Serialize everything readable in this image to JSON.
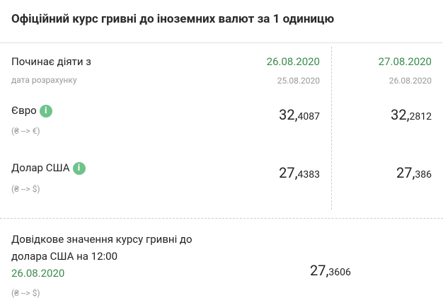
{
  "header": {
    "title": "Офіційний курс гривні до іноземних валют за 1 одиницю"
  },
  "table": {
    "effective_label": "Починає діяти з",
    "calc_label": "дата розрахунку",
    "columns": [
      {
        "effective_date": "26.08.2020",
        "calc_date": "25.08.2020"
      },
      {
        "effective_date": "27.08.2020",
        "calc_date": "26.08.2020"
      }
    ],
    "rows": [
      {
        "name": "Євро",
        "direction": "(₴ --> €)",
        "rates": [
          {
            "whole": "32,",
            "fraction": "4087"
          },
          {
            "whole": "32,",
            "fraction": "2812"
          }
        ]
      },
      {
        "name": "Долар США",
        "direction": "(₴ --> $)",
        "rates": [
          {
            "whole": "27,",
            "fraction": "4383"
          },
          {
            "whole": "27,",
            "fraction": "386"
          }
        ]
      }
    ]
  },
  "reference": {
    "label_line1": "Довідкове значення курсу гривні до",
    "label_line2": "долара США на 12:00",
    "date": "26.08.2020",
    "rate": {
      "whole": "27,",
      "fraction": "3606"
    },
    "direction": "(₴ --> $)"
  }
}
